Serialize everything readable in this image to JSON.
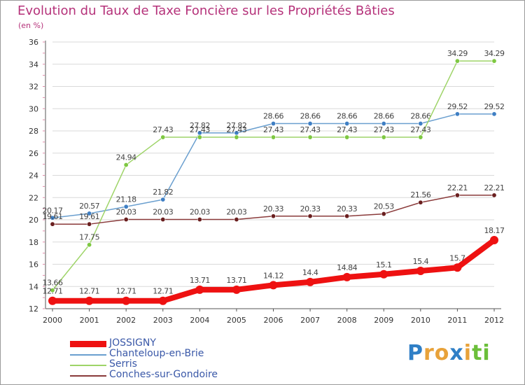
{
  "header": {
    "title": "Evolution du Taux de Taxe Foncière sur les Propriétés Bâties",
    "unit": "(en %)"
  },
  "brand": {
    "letters": [
      "P",
      "r",
      "o",
      "x",
      "i",
      "t",
      "i"
    ],
    "colors": [
      "#2f7fc6",
      "#e8a23a",
      "#e8a23a",
      "#2f7fc6",
      "#e8a23a",
      "#6bbf3a",
      "#6bbf3a"
    ]
  },
  "chart_data": {
    "type": "line",
    "x": [
      "2000",
      "2001",
      "2002",
      "2003",
      "2004",
      "2005",
      "2006",
      "2007",
      "2008",
      "2009",
      "2010",
      "2011",
      "2012"
    ],
    "ylim": [
      12,
      36
    ],
    "yticks": [
      12,
      14,
      16,
      18,
      20,
      22,
      24,
      26,
      28,
      30,
      32,
      34,
      36
    ],
    "legend_position": "bottom-left",
    "series": [
      {
        "name": "JOSSIGNY",
        "color": "#ee1111",
        "thick": true,
        "values": [
          12.71,
          12.71,
          12.71,
          12.71,
          13.71,
          13.71,
          14.12,
          14.4,
          14.84,
          15.1,
          15.4,
          15.7,
          18.17
        ],
        "labels": [
          "12.71",
          "12.71",
          "12.71",
          "12.71",
          "13.71",
          "13.71",
          "14.12",
          "14.4",
          "14.84",
          "15.1",
          "15.4",
          "15.7",
          "18.17"
        ]
      },
      {
        "name": "Chanteloup-en-Brie",
        "color": "#6a9fcf",
        "marker": "#3f7fc4",
        "thick": false,
        "values": [
          20.17,
          20.57,
          21.18,
          21.82,
          27.82,
          27.82,
          28.66,
          28.66,
          28.66,
          28.66,
          28.66,
          29.52,
          29.52
        ],
        "labels": [
          "20.17",
          "20.57",
          "21.18",
          "21.82",
          "27.82",
          "27.82",
          "28.66",
          "28.66",
          "28.66",
          "28.66",
          "28.66",
          "29.52",
          "29.52"
        ]
      },
      {
        "name": "Serris",
        "color": "#9ed468",
        "marker": "#7ec842",
        "thick": false,
        "values": [
          13.66,
          17.75,
          24.94,
          27.43,
          27.43,
          27.43,
          27.43,
          27.43,
          27.43,
          27.43,
          27.43,
          34.29,
          34.29
        ],
        "labels": [
          "13.66",
          "17.75",
          "24.94",
          "27.43",
          "27.43",
          "27.43",
          "27.43",
          "27.43",
          "27.43",
          "27.43",
          "27.43",
          "34.29",
          "34.29"
        ]
      },
      {
        "name": "Conches-sur-Gondoire",
        "color": "#8a3a3a",
        "marker": "#6a1f1f",
        "thick": false,
        "values": [
          19.61,
          19.61,
          20.03,
          20.03,
          20.03,
          20.03,
          20.33,
          20.33,
          20.33,
          20.53,
          21.56,
          22.21,
          22.21
        ],
        "labels": [
          "19.61",
          "19.61",
          "20.03",
          "20.03",
          "20.03",
          "20.03",
          "20.33",
          "20.33",
          "20.33",
          "20.53",
          "21.56",
          "22.21",
          "22.21"
        ]
      }
    ]
  }
}
